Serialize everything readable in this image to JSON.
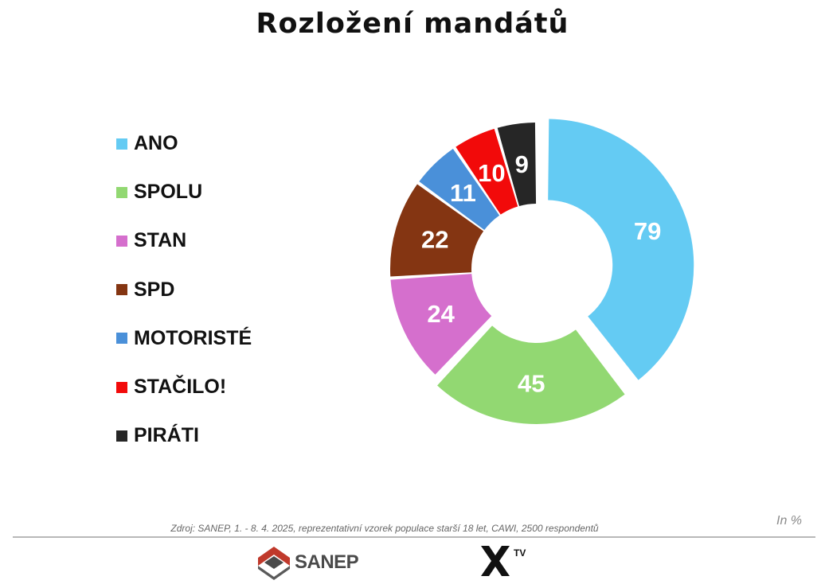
{
  "title": "Rozložení mandátů",
  "chart_data": {
    "type": "pie",
    "subtype": "donut",
    "title": "Rozložení mandátů",
    "legend_position": "left",
    "categories": [
      "ANO",
      "SPOLU",
      "STAN",
      "SPD",
      "MOTORISTÉ",
      "STAČILO!",
      "PIRÁTI"
    ],
    "values": [
      79,
      45,
      24,
      22,
      11,
      10,
      9
    ],
    "colors": [
      "#64cbf3",
      "#92d872",
      "#d56fcd",
      "#843512",
      "#4a90d9",
      "#f20a0a",
      "#262626"
    ],
    "exploded": [
      "ANO",
      "SPOLU"
    ]
  },
  "source": "Zdroj: SANEP, 1. - 8. 4. 2025, reprezentativní vzorek populace starší 18 let, CAWI, 2500 respondentů",
  "unit": "In %",
  "logos": {
    "sanep": "SANEP",
    "xtv": "TV"
  }
}
